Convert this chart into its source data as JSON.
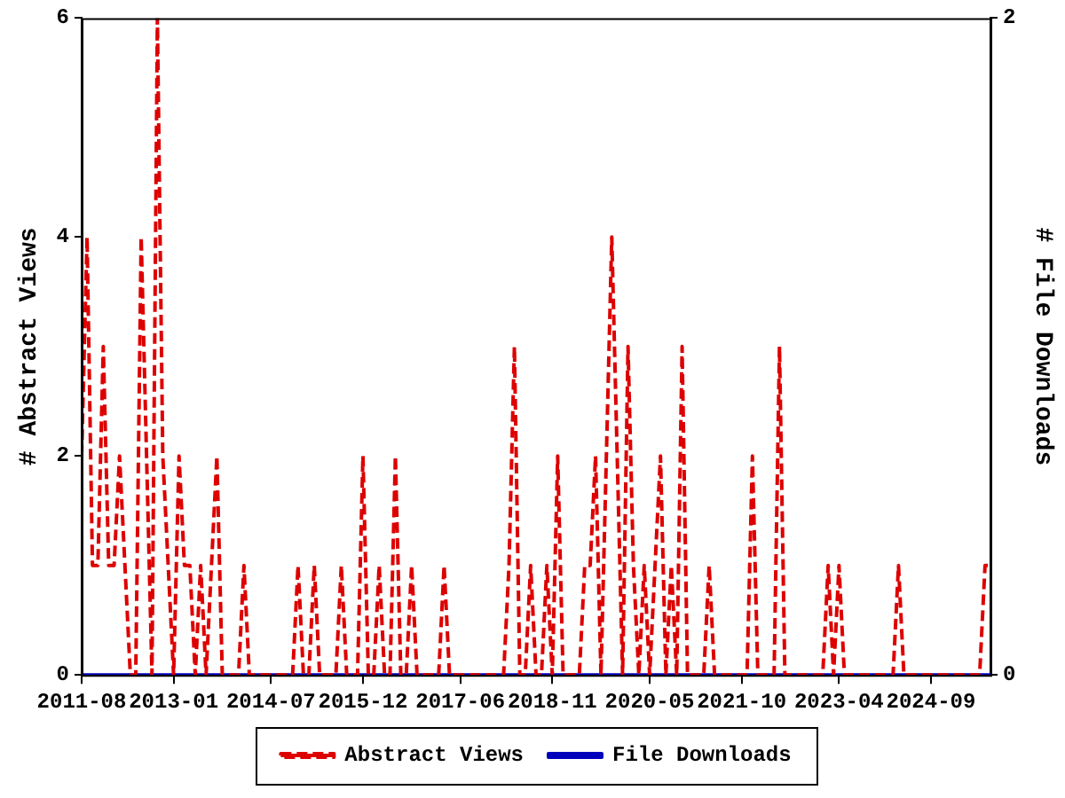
{
  "chart_data": {
    "type": "line",
    "ylabel": "# Abstract Views",
    "y2label": "# File Downloads",
    "x": [
      "2011-08",
      "2011-09",
      "2011-10",
      "2011-11",
      "2011-12",
      "2012-01",
      "2012-02",
      "2012-03",
      "2012-04",
      "2012-05",
      "2012-06",
      "2012-07",
      "2012-08",
      "2012-09",
      "2012-10",
      "2012-11",
      "2012-12",
      "2013-01",
      "2013-02",
      "2013-03",
      "2013-04",
      "2013-05",
      "2013-06",
      "2013-07",
      "2013-08",
      "2013-09",
      "2013-10",
      "2013-11",
      "2013-12",
      "2014-01",
      "2014-02",
      "2014-03",
      "2014-04",
      "2014-05",
      "2014-06",
      "2014-07",
      "2014-08",
      "2014-09",
      "2014-10",
      "2014-11",
      "2014-12",
      "2015-01",
      "2015-02",
      "2015-03",
      "2015-04",
      "2015-05",
      "2015-06",
      "2015-07",
      "2015-08",
      "2015-09",
      "2015-10",
      "2015-11",
      "2015-12",
      "2016-01",
      "2016-02",
      "2016-03",
      "2016-04",
      "2016-05",
      "2016-06",
      "2016-07",
      "2016-08",
      "2016-09",
      "2016-10",
      "2016-11",
      "2016-12",
      "2017-01",
      "2017-02",
      "2017-03",
      "2017-04",
      "2017-05",
      "2017-06",
      "2017-07",
      "2017-08",
      "2017-09",
      "2017-10",
      "2017-11",
      "2017-12",
      "2018-01",
      "2018-02",
      "2018-03",
      "2018-04",
      "2018-05",
      "2018-06",
      "2018-07",
      "2018-08",
      "2018-09",
      "2018-10",
      "2018-11",
      "2018-12",
      "2019-01",
      "2019-02",
      "2019-03",
      "2019-04",
      "2019-05",
      "2019-06",
      "2019-07",
      "2019-08",
      "2019-09",
      "2019-10",
      "2019-11",
      "2019-12",
      "2020-01",
      "2020-02",
      "2020-03",
      "2020-04",
      "2020-05",
      "2020-06",
      "2020-07",
      "2020-08",
      "2020-09",
      "2020-10",
      "2020-11",
      "2020-12",
      "2021-01",
      "2021-02",
      "2021-03",
      "2021-04",
      "2021-05",
      "2021-06",
      "2021-07",
      "2021-08",
      "2021-09",
      "2021-10",
      "2021-11",
      "2021-12",
      "2022-01",
      "2022-02",
      "2022-03",
      "2022-04",
      "2022-05",
      "2022-06",
      "2022-07",
      "2022-08",
      "2022-09",
      "2022-10",
      "2022-11",
      "2022-12",
      "2023-01",
      "2023-02",
      "2023-03",
      "2023-04",
      "2023-05",
      "2023-06",
      "2023-07",
      "2023-08",
      "2023-09",
      "2023-10",
      "2023-11",
      "2023-12",
      "2024-01",
      "2024-02",
      "2024-03",
      "2024-04",
      "2024-05",
      "2024-06",
      "2024-07",
      "2024-08",
      "2024-09",
      "2024-10",
      "2024-11",
      "2024-12",
      "2025-01",
      "2025-02",
      "2025-03",
      "2025-04",
      "2025-05",
      "2025-06",
      "2025-07",
      "2025-08"
    ],
    "series": [
      {
        "name": "Abstract Views",
        "color": "#dd0000",
        "line_style": "dashed",
        "values": [
          2,
          4,
          1,
          1,
          3,
          1,
          1,
          2,
          1,
          0,
          0,
          4,
          2,
          0,
          6,
          2,
          1,
          0,
          2,
          1,
          1,
          0,
          1,
          0,
          1,
          2,
          0,
          0,
          0,
          0,
          1,
          0,
          0,
          0,
          0,
          0,
          0,
          0,
          0,
          0,
          1,
          0,
          0,
          1,
          0,
          0,
          0,
          0,
          1,
          0,
          0,
          0,
          2,
          0,
          0,
          1,
          0,
          0,
          2,
          0,
          0,
          1,
          0,
          0,
          0,
          0,
          0,
          1,
          0,
          0,
          0,
          0,
          0,
          0,
          0,
          0,
          0,
          0,
          0,
          1,
          3,
          0,
          0,
          1,
          0,
          0,
          1,
          0,
          2,
          0,
          0,
          0,
          0,
          1,
          1,
          2,
          0,
          2,
          4,
          2,
          0,
          3,
          1,
          0,
          1,
          0,
          1,
          2,
          0,
          1,
          0,
          3,
          0,
          0,
          0,
          0,
          1,
          0,
          0,
          0,
          0,
          0,
          0,
          0,
          2,
          0,
          0,
          0,
          0,
          3,
          0,
          0,
          0,
          0,
          0,
          0,
          0,
          0,
          1,
          0,
          1,
          0,
          0,
          0,
          0,
          0,
          0,
          0,
          0,
          0,
          0,
          1,
          0,
          0,
          0,
          0,
          0,
          0,
          0,
          0,
          0,
          0,
          0,
          0,
          0,
          0,
          0,
          1,
          1
        ]
      },
      {
        "name": "File Downloads",
        "color": "#0000bb",
        "line_style": "solid",
        "axis": "y2",
        "values": [
          0,
          0,
          0,
          0,
          0,
          0,
          0,
          0,
          0,
          0,
          0,
          0,
          0,
          0,
          0,
          0,
          0,
          0,
          0,
          0,
          0,
          0,
          0,
          0,
          0,
          0,
          0,
          0,
          0,
          0,
          0,
          0,
          0,
          0,
          0,
          0,
          0,
          0,
          0,
          0,
          0,
          0,
          0,
          0,
          0,
          0,
          0,
          0,
          0,
          0,
          0,
          0,
          0,
          0,
          0,
          0,
          0,
          0,
          0,
          0,
          0,
          0,
          0,
          0,
          0,
          0,
          0,
          0,
          0,
          0,
          0,
          0,
          0,
          0,
          0,
          0,
          0,
          0,
          0,
          0,
          0,
          0,
          0,
          0,
          0,
          0,
          0,
          0,
          0,
          0,
          0,
          0,
          0,
          0,
          0,
          0,
          0,
          0,
          0,
          0,
          0,
          0,
          0,
          0,
          0,
          0,
          0,
          0,
          0,
          0,
          0,
          0,
          0,
          0,
          0,
          0,
          0,
          0,
          0,
          0,
          0,
          0,
          0,
          0,
          0,
          0,
          0,
          0,
          0,
          0,
          0,
          0,
          0,
          0,
          0,
          0,
          0,
          0,
          0,
          0,
          0,
          0,
          0,
          0,
          0,
          0,
          0,
          0,
          0,
          0,
          0,
          0,
          0,
          0,
          0,
          0,
          0,
          0,
          0,
          0,
          0,
          0,
          0,
          0,
          0,
          0,
          0,
          0,
          0
        ]
      }
    ],
    "xlim": [
      "2011-08",
      "2025-08"
    ],
    "xticks": [
      "2011-08",
      "2013-01",
      "2014-07",
      "2015-12",
      "2017-06",
      "2018-11",
      "2020-05",
      "2021-10",
      "2023-04",
      "2024-09"
    ],
    "ylim": [
      0,
      6
    ],
    "yticks": [
      0,
      2,
      4,
      6
    ],
    "y2lim": [
      0,
      2
    ],
    "y2ticks": [
      0,
      2
    ],
    "legend": "bottom",
    "marker": "none",
    "grid": false
  }
}
